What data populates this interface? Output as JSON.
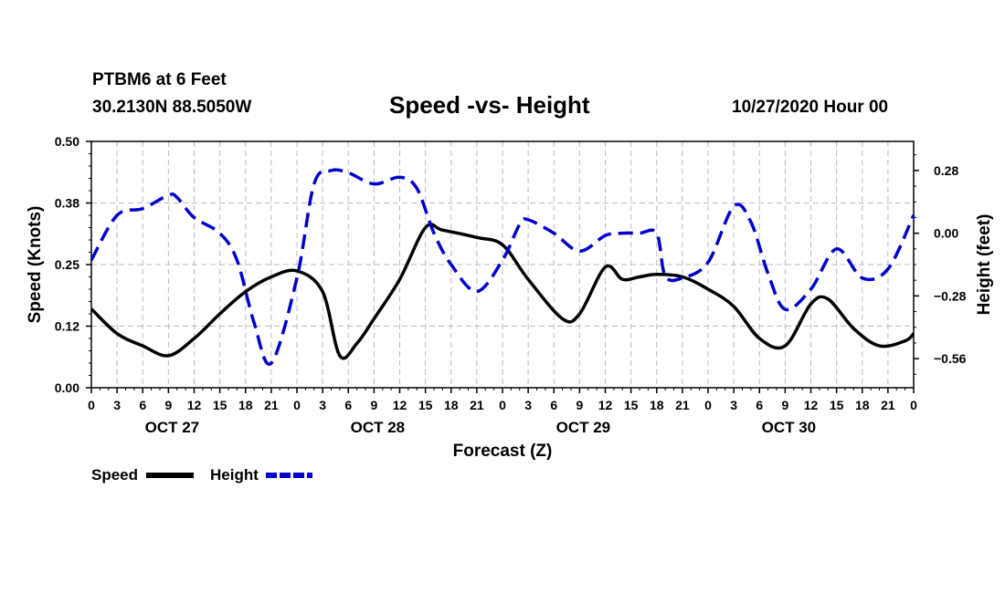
{
  "header": {
    "station": "PTBM6 at 6 Feet",
    "coords": "30.2130N 88.5050W",
    "timestamp": "10/27/2020 Hour 00"
  },
  "colors": {
    "speed": "#000000",
    "height": "#0000cc",
    "grid": "#bbbbbb"
  },
  "chart_data": {
    "type": "line",
    "title": "Speed -vs- Height",
    "xlabel": "Forecast (Z)",
    "ylabel_left": "Speed (Knots)",
    "ylabel_right": "Height (feet)",
    "x_unit": "forecast hour",
    "xlim": [
      0,
      96
    ],
    "ylim_left": [
      0,
      0.5
    ],
    "ylim_right": [
      -0.69,
      0.41
    ],
    "left_ticks": [
      "0.50",
      "0.38",
      "0.25",
      "0.12",
      "0.00"
    ],
    "left_tick_values": [
      0.5,
      0.375,
      0.25,
      0.125,
      0.0
    ],
    "right_ticks": [
      "0.28",
      "0.00",
      "−0.28",
      "−0.56"
    ],
    "right_tick_values": [
      0.28,
      0.0,
      -0.28,
      -0.56
    ],
    "hour_ticks": [
      "0",
      "3",
      "6",
      "9",
      "12",
      "15",
      "18",
      "21",
      "0",
      "3",
      "6",
      "9",
      "12",
      "15",
      "18",
      "21",
      "0",
      "3",
      "6",
      "9",
      "12",
      "15",
      "18",
      "21",
      "0",
      "3",
      "6",
      "9",
      "12",
      "15",
      "18",
      "21",
      "0"
    ],
    "day_labels": [
      {
        "label": "OCT 27",
        "hour": 9
      },
      {
        "label": "OCT 28",
        "hour": 33
      },
      {
        "label": "OCT 29",
        "hour": 57
      },
      {
        "label": "OCT 30",
        "hour": 81
      }
    ],
    "legend": {
      "position": "bottom-left",
      "speed_label": "Speed",
      "height_label": "Height"
    },
    "series": [
      {
        "name": "Speed",
        "axis": "left",
        "style": "solid",
        "x": [
          0,
          3,
          6,
          9,
          12,
          15,
          18,
          21,
          24,
          27,
          29,
          31,
          33,
          36,
          39,
          41,
          45,
          48,
          51,
          55,
          57,
          60,
          62,
          64,
          66,
          69,
          72,
          75,
          78,
          81,
          84,
          86,
          89,
          92,
          95,
          96
        ],
        "y": [
          0.16,
          0.11,
          0.085,
          0.065,
          0.1,
          0.15,
          0.195,
          0.225,
          0.237,
          0.195,
          0.065,
          0.09,
          0.14,
          0.22,
          0.325,
          0.32,
          0.305,
          0.29,
          0.22,
          0.14,
          0.15,
          0.245,
          0.22,
          0.225,
          0.23,
          0.225,
          0.2,
          0.165,
          0.1,
          0.085,
          0.17,
          0.18,
          0.12,
          0.085,
          0.095,
          0.11
        ]
      },
      {
        "name": "Height",
        "axis": "right",
        "style": "dashed",
        "x": [
          0,
          3,
          6,
          9,
          10,
          12,
          15,
          17,
          19,
          21,
          24,
          26,
          28,
          30,
          33,
          36,
          38,
          40,
          42,
          45,
          48,
          50,
          51,
          54,
          57,
          60,
          62,
          64,
          66,
          67,
          69,
          72,
          75,
          77,
          79,
          81,
          84,
          87,
          90,
          93,
          96
        ],
        "y": [
          -0.12,
          0.08,
          0.11,
          0.17,
          0.16,
          0.07,
          0.0,
          -0.12,
          -0.4,
          -0.58,
          -0.2,
          0.22,
          0.28,
          0.27,
          0.22,
          0.25,
          0.2,
          0.0,
          -0.14,
          -0.26,
          -0.12,
          0.04,
          0.06,
          0.0,
          -0.08,
          -0.01,
          0.0,
          0.0,
          0.0,
          -0.19,
          -0.2,
          -0.13,
          0.12,
          0.05,
          -0.18,
          -0.34,
          -0.25,
          -0.07,
          -0.2,
          -0.16,
          0.08
        ]
      }
    ]
  }
}
